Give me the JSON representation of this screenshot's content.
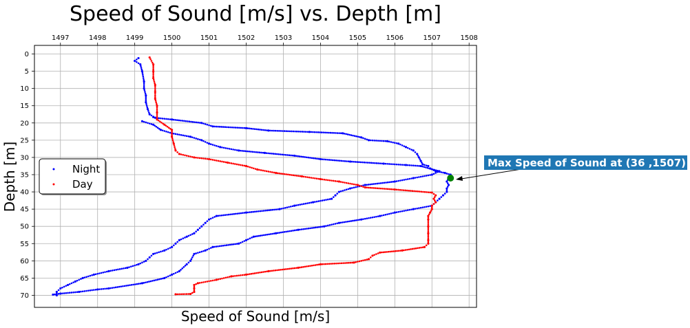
{
  "chart_data": {
    "type": "scatter",
    "title": "Speed of Sound [m/s] vs. Depth [m]",
    "xlabel": "Speed of Sound [m/s]",
    "ylabel": "Depth [m]",
    "xlim": [
      1496.3,
      1508.2
    ],
    "ylim": [
      73.5,
      -2.5
    ],
    "y_inverted": true,
    "x_axis_position": "top",
    "x_ticks": [
      "1497",
      "1498",
      "1499",
      "1500",
      "1501",
      "1502",
      "1503",
      "1504",
      "1505",
      "1506",
      "1507",
      "1508"
    ],
    "y_ticks": [
      "0",
      "5",
      "10",
      "15",
      "20",
      "25",
      "30",
      "35",
      "40",
      "45",
      "50",
      "55",
      "60",
      "65",
      "70"
    ],
    "grid": true,
    "legend_position": "center-left",
    "series": [
      {
        "name": "Night",
        "color": "#0000ff",
        "points": [
          [
            1499.1,
            1.2
          ],
          [
            1499.0,
            2.0
          ],
          [
            1499.15,
            3.0
          ],
          [
            1499.2,
            5.0
          ],
          [
            1499.25,
            8.0
          ],
          [
            1499.25,
            10.0
          ],
          [
            1499.3,
            12.0
          ],
          [
            1499.3,
            14.0
          ],
          [
            1499.35,
            16.0
          ],
          [
            1499.4,
            17.5
          ],
          [
            1499.55,
            18.5
          ],
          [
            1500.0,
            19.0
          ],
          [
            1500.8,
            20.0
          ],
          [
            1501.1,
            21.0
          ],
          [
            1502.0,
            21.5
          ],
          [
            1502.6,
            22.2
          ],
          [
            1503.7,
            22.6
          ],
          [
            1504.6,
            23.0
          ],
          [
            1505.1,
            24.2
          ],
          [
            1505.3,
            25.0
          ],
          [
            1505.8,
            25.3
          ],
          [
            1506.1,
            26.0
          ],
          [
            1506.3,
            27.0
          ],
          [
            1506.5,
            28.0
          ],
          [
            1506.6,
            29.0
          ],
          [
            1506.65,
            30.0
          ],
          [
            1506.7,
            31.0
          ],
          [
            1506.75,
            32.0
          ],
          [
            1506.9,
            32.5
          ],
          [
            1506.95,
            33.2
          ],
          [
            1507.1,
            34.0
          ],
          [
            1507.35,
            34.5
          ],
          [
            1507.5,
            35.0
          ],
          [
            1507.45,
            36.0
          ],
          [
            1507.4,
            37.0
          ],
          [
            1507.45,
            38.0
          ],
          [
            1507.4,
            39.0
          ],
          [
            1507.4,
            40.0
          ],
          [
            1507.3,
            41.0
          ],
          [
            1507.2,
            42.0
          ],
          [
            1507.1,
            43.0
          ],
          [
            1507.0,
            44.0
          ],
          [
            1506.5,
            45.0
          ],
          [
            1506.0,
            46.0
          ],
          [
            1505.6,
            47.0
          ],
          [
            1505.1,
            48.0
          ],
          [
            1504.5,
            49.0
          ],
          [
            1504.1,
            50.0
          ],
          [
            1503.4,
            51.0
          ],
          [
            1502.8,
            52.0
          ],
          [
            1502.2,
            53.0
          ],
          [
            1502.0,
            54.0
          ],
          [
            1501.8,
            55.0
          ],
          [
            1501.1,
            56.0
          ],
          [
            1500.9,
            57.0
          ],
          [
            1500.6,
            58.0
          ],
          [
            1500.5,
            60.0
          ],
          [
            1500.4,
            61.0
          ],
          [
            1500.2,
            63.0
          ],
          [
            1500.0,
            64.0
          ],
          [
            1499.8,
            65.0
          ],
          [
            1499.2,
            66.5
          ],
          [
            1498.3,
            68.0
          ],
          [
            1498.0,
            68.3
          ],
          [
            1497.5,
            69.0
          ],
          [
            1497.0,
            69.5
          ],
          [
            1496.8,
            69.8
          ],
          [
            1499.2,
            19.5
          ],
          [
            1499.5,
            20.5
          ],
          [
            1499.7,
            22.0
          ],
          [
            1500.0,
            23.0
          ],
          [
            1500.5,
            24.0
          ],
          [
            1500.8,
            25.0
          ],
          [
            1501.0,
            26.0
          ],
          [
            1501.3,
            27.0
          ],
          [
            1501.8,
            28.0
          ],
          [
            1502.5,
            28.7
          ],
          [
            1503.3,
            29.5
          ],
          [
            1504.0,
            30.5
          ],
          [
            1504.8,
            31.2
          ],
          [
            1505.7,
            31.8
          ],
          [
            1506.3,
            32.2
          ],
          [
            1506.7,
            32.5
          ],
          [
            1507.2,
            34.0
          ],
          [
            1507.0,
            35.0
          ],
          [
            1506.5,
            36.0
          ],
          [
            1506.0,
            37.0
          ],
          [
            1505.2,
            38.0
          ],
          [
            1504.8,
            39.0
          ],
          [
            1504.5,
            40.0
          ],
          [
            1504.4,
            41.0
          ],
          [
            1504.3,
            42.0
          ],
          [
            1503.8,
            43.0
          ],
          [
            1503.3,
            44.0
          ],
          [
            1502.9,
            45.0
          ],
          [
            1502.0,
            46.0
          ],
          [
            1501.2,
            47.0
          ],
          [
            1501.0,
            48.0
          ],
          [
            1500.9,
            49.0
          ],
          [
            1500.8,
            50.0
          ],
          [
            1500.7,
            51.0
          ],
          [
            1500.6,
            52.0
          ],
          [
            1500.4,
            53.0
          ],
          [
            1500.2,
            54.0
          ],
          [
            1500.1,
            55.0
          ],
          [
            1500.0,
            56.0
          ],
          [
            1499.8,
            57.0
          ],
          [
            1499.5,
            58.0
          ],
          [
            1499.4,
            59.0
          ],
          [
            1499.3,
            60.0
          ],
          [
            1499.1,
            61.0
          ],
          [
            1498.8,
            62.0
          ],
          [
            1498.3,
            63.0
          ],
          [
            1497.9,
            64.0
          ],
          [
            1497.6,
            65.0
          ],
          [
            1497.4,
            66.0
          ],
          [
            1497.2,
            67.0
          ],
          [
            1497.0,
            68.0
          ],
          [
            1496.9,
            69.0
          ],
          [
            1496.9,
            70.0
          ],
          [
            1499.5,
            18.3
          ],
          [
            1499.6,
            18.6
          ]
        ]
      },
      {
        "name": "Day",
        "color": "#ff0000",
        "points": [
          [
            1499.4,
            1.0
          ],
          [
            1499.5,
            3.0
          ],
          [
            1499.5,
            5.0
          ],
          [
            1499.5,
            7.0
          ],
          [
            1499.55,
            9.0
          ],
          [
            1499.55,
            11.0
          ],
          [
            1499.55,
            13.0
          ],
          [
            1499.6,
            15.0
          ],
          [
            1499.6,
            17.0
          ],
          [
            1499.6,
            19.0
          ],
          [
            1499.8,
            20.5
          ],
          [
            1500.0,
            22.0
          ],
          [
            1500.0,
            24.0
          ],
          [
            1500.05,
            26.0
          ],
          [
            1500.1,
            28.0
          ],
          [
            1500.2,
            29.0
          ],
          [
            1500.6,
            30.0
          ],
          [
            1501.0,
            30.5
          ],
          [
            1501.5,
            31.5
          ],
          [
            1502.0,
            32.5
          ],
          [
            1502.3,
            33.5
          ],
          [
            1502.8,
            34.5
          ],
          [
            1503.5,
            35.5
          ],
          [
            1504.0,
            36.3
          ],
          [
            1504.5,
            37.0
          ],
          [
            1505.0,
            38.0
          ],
          [
            1505.2,
            38.7
          ],
          [
            1506.0,
            39.3
          ],
          [
            1507.0,
            40.2
          ],
          [
            1507.1,
            41.0
          ],
          [
            1507.05,
            42.0
          ],
          [
            1507.1,
            43.0
          ],
          [
            1507.0,
            44.0
          ],
          [
            1507.0,
            45.0
          ],
          [
            1506.95,
            46.0
          ],
          [
            1506.9,
            47.0
          ],
          [
            1506.9,
            48.0
          ],
          [
            1506.9,
            50.0
          ],
          [
            1506.9,
            52.0
          ],
          [
            1506.9,
            54.0
          ],
          [
            1506.9,
            55.0
          ],
          [
            1506.8,
            56.0
          ],
          [
            1506.2,
            57.0
          ],
          [
            1505.6,
            57.6
          ],
          [
            1505.4,
            58.5
          ],
          [
            1505.3,
            59.5
          ],
          [
            1504.9,
            60.5
          ],
          [
            1504.0,
            61.0
          ],
          [
            1503.4,
            62.0
          ],
          [
            1502.6,
            63.0
          ],
          [
            1502.0,
            64.0
          ],
          [
            1501.6,
            64.5
          ],
          [
            1501.2,
            65.5
          ],
          [
            1500.7,
            66.5
          ],
          [
            1500.6,
            67.0
          ],
          [
            1500.6,
            68.0
          ],
          [
            1500.6,
            69.0
          ],
          [
            1500.5,
            69.6
          ],
          [
            1500.1,
            69.7
          ]
        ]
      }
    ],
    "highlight_point": {
      "x": 1507.5,
      "y": 36,
      "color": "#008000"
    },
    "annotation": {
      "text": "Max Speed of Sound at (36 ,1507)",
      "bg_color": "#1f77b4",
      "text_color": "#ffffff"
    }
  }
}
